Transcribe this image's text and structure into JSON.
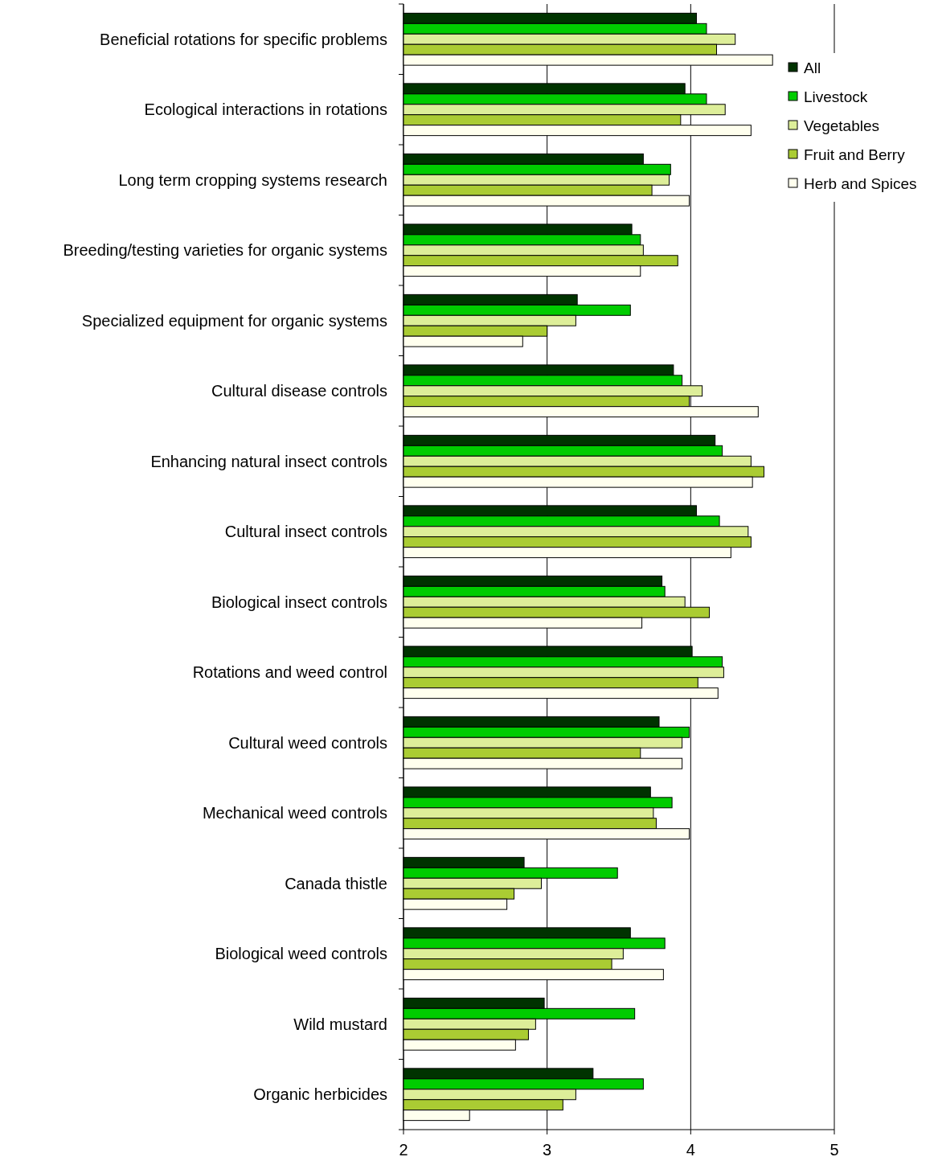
{
  "chart_data": {
    "type": "bar",
    "orientation": "horizontal",
    "categories": [
      "Beneficial rotations for specific problems",
      "Ecological interactions in rotations",
      "Long term cropping systems research",
      "Breeding/testing varieties for organic systems",
      "Specialized equipment for organic systems",
      "Cultural disease controls",
      "Enhancing natural insect controls",
      "Cultural insect controls",
      "Biological insect controls",
      "Rotations and weed control",
      "Cultural weed controls",
      "Mechanical weed controls",
      "Canada thistle",
      "Biological weed controls",
      "Wild mustard",
      "Organic herbicides"
    ],
    "series": [
      {
        "name": "All",
        "color": "#003300",
        "values": [
          4.04,
          3.96,
          3.67,
          3.59,
          3.21,
          3.88,
          4.17,
          4.04,
          3.8,
          4.01,
          3.78,
          3.72,
          2.84,
          3.58,
          2.98,
          3.32
        ]
      },
      {
        "name": "Livestock",
        "color": "#00cc00",
        "values": [
          4.11,
          4.11,
          3.86,
          3.65,
          3.58,
          3.94,
          4.22,
          4.2,
          3.82,
          4.22,
          3.99,
          3.87,
          3.49,
          3.82,
          3.61,
          3.67
        ]
      },
      {
        "name": "Vegetables",
        "color": "#ddee99",
        "values": [
          4.31,
          4.24,
          3.85,
          3.67,
          3.2,
          4.08,
          4.42,
          4.4,
          3.96,
          4.23,
          3.94,
          3.74,
          2.96,
          3.53,
          2.92,
          3.2
        ]
      },
      {
        "name": "Fruit and Berry",
        "color": "#aacc33",
        "values": [
          4.18,
          3.93,
          3.73,
          3.91,
          3.0,
          3.99,
          4.51,
          4.42,
          4.13,
          4.05,
          3.65,
          3.76,
          2.77,
          3.45,
          2.87,
          3.11
        ]
      },
      {
        "name": "Herb and Spices",
        "color": "#ffffee",
        "values": [
          4.57,
          4.42,
          3.99,
          3.65,
          2.83,
          4.47,
          4.43,
          4.28,
          3.66,
          4.19,
          3.94,
          3.99,
          2.72,
          3.81,
          2.78,
          2.46
        ]
      }
    ],
    "xlim": [
      2,
      5
    ],
    "xticks": [
      2,
      3,
      4,
      5
    ],
    "grid": "x",
    "legend": "top right"
  }
}
